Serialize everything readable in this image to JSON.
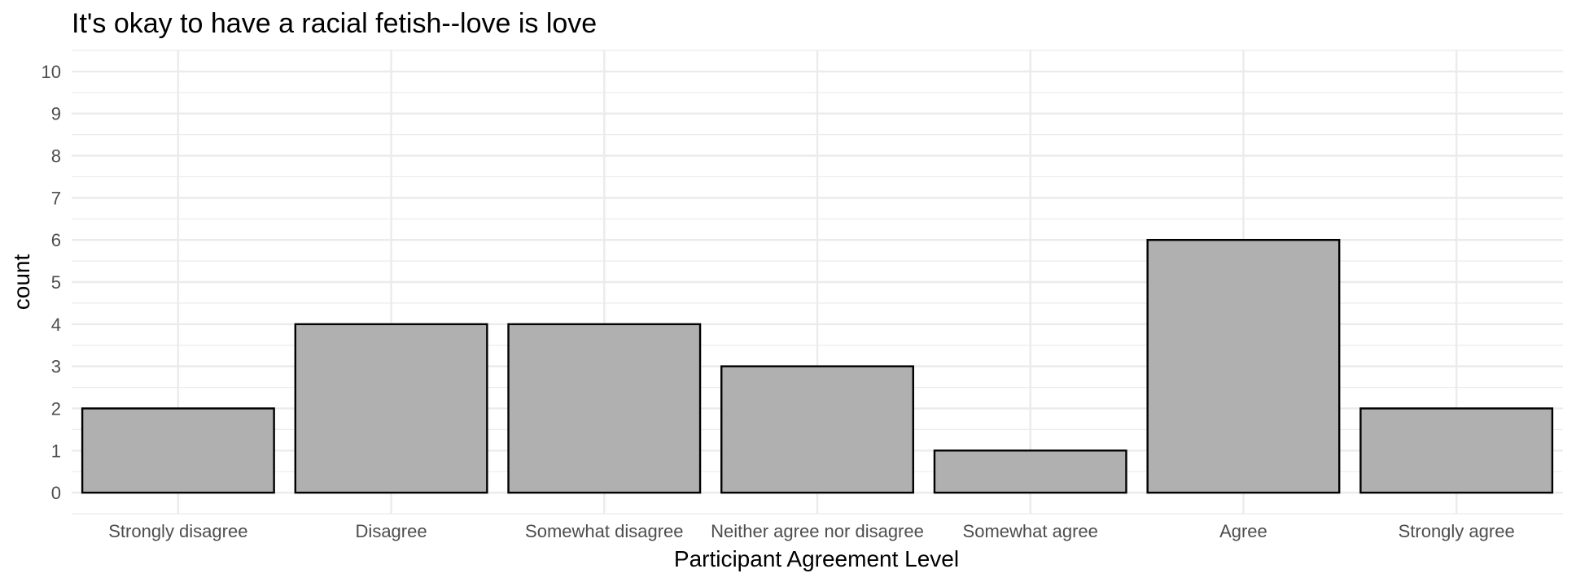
{
  "chart_data": {
    "type": "bar",
    "title": "It's okay to have a racial fetish--love is love",
    "xlabel": "Participant Agreement Level",
    "ylabel": "count",
    "categories": [
      "Strongly disagree",
      "Disagree",
      "Somewhat disagree",
      "Neither agree nor disagree",
      "Somewhat agree",
      "Agree",
      "Strongly agree"
    ],
    "values": [
      2,
      4,
      4,
      3,
      1,
      6,
      2
    ],
    "ylim": [
      -0.5,
      10.5
    ],
    "yticks": [
      "0",
      "1",
      "2",
      "3",
      "4",
      "5",
      "6",
      "7",
      "8",
      "9",
      "10"
    ],
    "grid": true,
    "colors": {
      "bar_fill": "#b0b0b0",
      "bar_stroke": "#000000",
      "grid": "#ebebeb"
    }
  }
}
